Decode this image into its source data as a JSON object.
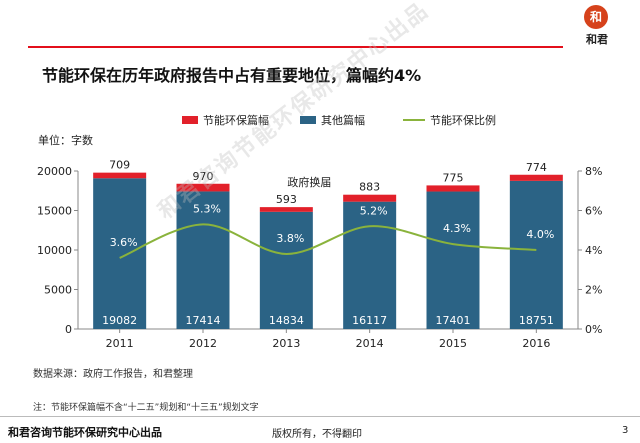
{
  "header": {
    "brand_mark": "和",
    "brand_name": "和君"
  },
  "title": "节能环保在历年政府报告中占有重要地位，篇幅约4%",
  "colors": {
    "accent_red": "#e30f1b",
    "bar_other": "#2b6385",
    "bar_energy": "#e2202a",
    "line": "#8ab33c"
  },
  "chart_data": {
    "type": "bar",
    "title": "",
    "ylabel": "单位：字数",
    "categories": [
      "2011",
      "2012",
      "2013",
      "2014",
      "2015",
      "2016"
    ],
    "series": [
      {
        "name": "节能环保篇幅",
        "values": [
          709,
          970,
          593,
          883,
          775,
          774
        ],
        "value_labels": [
          "709",
          "970",
          "593",
          "883",
          "775",
          "774"
        ],
        "stack": "a"
      },
      {
        "name": "其他篇幅",
        "values": [
          19082,
          17414,
          14834,
          16117,
          17401,
          18751
        ],
        "value_labels": [
          "19082",
          "17414",
          "14834",
          "16117",
          "17401",
          "18751"
        ],
        "stack": "a"
      },
      {
        "name": "节能环保比例",
        "type": "line",
        "axis": "right",
        "values": [
          3.6,
          5.3,
          3.8,
          5.2,
          4.3,
          4.0
        ],
        "value_labels": [
          "3.6%",
          "5.3%",
          "3.8%",
          "5.2%",
          "4.3%",
          "4.0%"
        ]
      }
    ],
    "ylim": [
      0,
      20000
    ],
    "yticks": [
      "0",
      "5000",
      "10000",
      "15000",
      "20000"
    ],
    "y2lim": [
      0,
      8
    ],
    "y2ticks": [
      "0%",
      "2%",
      "4%",
      "6%",
      "8%"
    ],
    "annotation": "政府换届",
    "legend_position": "top",
    "grid": false
  },
  "source": "数据来源：政府工作报告，和君整理",
  "note": "注：节能环保篇幅不含“十二五”规划和“十三五”规划文字",
  "footer": {
    "left": "和君咨询节能环保研究中心出品",
    "middle": "版权所有，不得翻印",
    "page": "3"
  },
  "watermark": "和君咨询节能环保研究中心出品"
}
